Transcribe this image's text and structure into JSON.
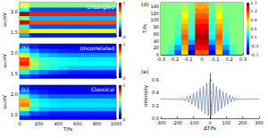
{
  "chart_data": [
    {
      "type": "heatmap",
      "panel_label": "(a)",
      "title": "Entangled",
      "y_label": "ωₛ/eV",
      "tick_labels": "y",
      "x": [
        50,
        150,
        250,
        350,
        450,
        550,
        650,
        750,
        850,
        950
      ],
      "y": [
        1.45,
        1.55,
        1.65,
        1.75,
        1.85,
        1.95,
        2.05,
        2.15
      ],
      "cells": [
        [
          0.3,
          0.15,
          0.15,
          0.15,
          0.15,
          0.15,
          0.15,
          0.15,
          0.15,
          0.15
        ],
        [
          0.7,
          0.6,
          0.6,
          0.6,
          0.6,
          0.6,
          0.6,
          0.6,
          0.6,
          0.6
        ],
        [
          0.4,
          0.2,
          0.2,
          0.2,
          0.2,
          0.2,
          0.2,
          0.2,
          0.2,
          0.2
        ],
        [
          0.9,
          0.8,
          0.8,
          0.8,
          0.8,
          0.8,
          0.8,
          0.8,
          0.8,
          0.8
        ],
        [
          0.5,
          0.3,
          0.3,
          0.3,
          0.3,
          0.3,
          0.3,
          0.3,
          0.3,
          0.3
        ],
        [
          0.95,
          0.85,
          0.85,
          0.85,
          0.85,
          0.85,
          0.85,
          0.85,
          0.85,
          0.85
        ],
        [
          0.4,
          0.2,
          0.2,
          0.2,
          0.2,
          0.2,
          0.2,
          0.2,
          0.2,
          0.2
        ],
        [
          0.6,
          0.5,
          0.5,
          0.5,
          0.5,
          0.5,
          0.5,
          0.5,
          0.5,
          0.5
        ]
      ],
      "colorbar": {
        "range": [
          0,
          1
        ],
        "ticks": [
          0,
          1
        ]
      },
      "xlim": [
        0,
        1000
      ],
      "xticks": [
        0,
        200,
        400,
        600,
        800,
        1000
      ],
      "ylim": [
        1.4,
        2.2
      ],
      "yticks": [
        1.5,
        {
          "value": 2,
          "label": "2.0"
        }
      ]
    },
    {
      "type": "heatmap",
      "panel_label": "(b)",
      "title": "Uncorrelated",
      "y_label": "ωₛ/eV",
      "tick_labels": "y",
      "x": [
        50,
        150,
        250,
        350,
        450,
        550,
        650,
        750,
        850,
        950
      ],
      "y": [
        1.45,
        1.55,
        1.65,
        1.75,
        1.85,
        1.95,
        2.05,
        2.15
      ],
      "cells": [
        [
          0.2,
          0.15,
          0.12,
          0.1,
          0.1,
          0.1,
          0.1,
          0.1,
          0.1,
          0.1
        ],
        [
          0.4,
          0.3,
          0.25,
          0.2,
          0.18,
          0.15,
          0.15,
          0.15,
          0.15,
          0.15
        ],
        [
          0.7,
          0.5,
          0.42,
          0.38,
          0.35,
          0.33,
          0.32,
          0.32,
          0.32,
          0.32
        ],
        [
          0.85,
          0.55,
          0.45,
          0.42,
          0.4,
          0.4,
          0.38,
          0.38,
          0.38,
          0.38
        ],
        [
          0.8,
          0.5,
          0.42,
          0.4,
          0.38,
          0.37,
          0.36,
          0.36,
          0.36,
          0.36
        ],
        [
          0.6,
          0.4,
          0.33,
          0.3,
          0.28,
          0.27,
          0.27,
          0.27,
          0.27,
          0.27
        ],
        [
          0.35,
          0.25,
          0.2,
          0.18,
          0.16,
          0.15,
          0.15,
          0.15,
          0.15,
          0.15
        ],
        [
          0.2,
          0.15,
          0.12,
          0.1,
          0.1,
          0.1,
          0.1,
          0.1,
          0.1,
          0.1
        ]
      ],
      "colorbar": {
        "range": [
          0,
          1
        ],
        "ticks": [
          0,
          1
        ]
      },
      "xlim": [
        0,
        1000
      ],
      "xticks": [
        0,
        200,
        400,
        600,
        800,
        1000
      ],
      "ylim": [
        1.4,
        2.2
      ],
      "yticks": [
        1.5,
        {
          "value": 2,
          "label": "2.0"
        }
      ]
    },
    {
      "type": "heatmap",
      "panel_label": "(c)",
      "title": "Classical",
      "y_label": "ωₛ/eV",
      "x_label": "T/fs",
      "x": [
        50,
        150,
        250,
        350,
        450,
        550,
        650,
        750,
        850,
        950
      ],
      "y": [
        1.45,
        1.55,
        1.65,
        1.75,
        1.85,
        1.95,
        2.05,
        2.15
      ],
      "cells": [
        [
          0.15,
          0.12,
          0.1,
          0.1,
          0.1,
          0.1,
          0.1,
          0.1,
          0.1,
          0.1
        ],
        [
          0.3,
          0.2,
          0.18,
          0.15,
          0.15,
          0.15,
          0.15,
          0.15,
          0.15,
          0.15
        ],
        [
          0.55,
          0.38,
          0.32,
          0.3,
          0.3,
          0.3,
          0.3,
          0.3,
          0.3,
          0.3
        ],
        [
          0.75,
          0.45,
          0.38,
          0.36,
          0.35,
          0.35,
          0.35,
          0.35,
          0.35,
          0.35
        ],
        [
          0.7,
          0.42,
          0.36,
          0.34,
          0.33,
          0.33,
          0.33,
          0.33,
          0.33,
          0.33
        ],
        [
          0.45,
          0.3,
          0.25,
          0.22,
          0.22,
          0.22,
          0.22,
          0.22,
          0.22,
          0.22
        ],
        [
          0.25,
          0.18,
          0.15,
          0.13,
          0.12,
          0.12,
          0.12,
          0.12,
          0.12,
          0.12
        ],
        [
          0.15,
          0.12,
          0.1,
          0.1,
          0.1,
          0.1,
          0.1,
          0.1,
          0.1,
          0.1
        ]
      ],
      "colorbar": {
        "range": [
          0,
          1
        ],
        "ticks": [
          0,
          1
        ]
      },
      "xlim": [
        0,
        1000
      ],
      "xticks": [
        0,
        200,
        400,
        600,
        800,
        1000
      ],
      "ylim": [
        1.4,
        2.2
      ],
      "yticks": [
        1.5,
        {
          "value": 2,
          "label": "2.0"
        }
      ]
    },
    {
      "type": "heatmap",
      "panel_label": "(d)",
      "y_label": "T/fs",
      "x": [
        -0.275,
        -0.225,
        -0.175,
        -0.125,
        -0.075,
        -0.025,
        0.025,
        0.075,
        0.125,
        0.175,
        0.225,
        0.275
      ],
      "y": [
        7.5,
        22.5,
        37.5,
        52.5,
        67.5,
        82.5,
        97.5,
        112.5,
        127.5,
        142.5
      ],
      "cells": [
        [
          0.5,
          0.3,
          -0.2,
          0.9,
          -0.5,
          1.2,
          1.2,
          -0.5,
          0.9,
          -0.2,
          0.3,
          0.5
        ],
        [
          0.5,
          0.4,
          0.0,
          1.0,
          -0.3,
          1.4,
          1.4,
          -0.3,
          1.0,
          0.0,
          0.4,
          0.5
        ],
        [
          0.5,
          0.5,
          0.2,
          1.1,
          0.0,
          1.5,
          1.5,
          0.0,
          1.1,
          0.2,
          0.5,
          0.5
        ],
        [
          0.5,
          0.5,
          0.3,
          1.2,
          0.2,
          1.6,
          1.6,
          0.2,
          1.2,
          0.3,
          0.5,
          0.5
        ],
        [
          0.5,
          0.5,
          0.4,
          1.1,
          0.3,
          1.5,
          1.5,
          0.3,
          1.1,
          0.4,
          0.5,
          0.5
        ],
        [
          0.5,
          0.5,
          0.4,
          1.0,
          0.3,
          1.4,
          1.4,
          0.3,
          1.0,
          0.4,
          0.5,
          0.5
        ],
        [
          0.5,
          0.5,
          0.45,
          0.9,
          0.35,
          1.3,
          1.3,
          0.35,
          0.9,
          0.45,
          0.5,
          0.5
        ],
        [
          0.5,
          0.5,
          0.45,
          0.8,
          0.4,
          1.2,
          1.2,
          0.4,
          0.8,
          0.45,
          0.5,
          0.5
        ],
        [
          0.5,
          0.5,
          0.5,
          0.7,
          0.45,
          1.1,
          1.1,
          0.45,
          0.7,
          0.5,
          0.5,
          0.5
        ],
        [
          0.5,
          0.5,
          0.5,
          0.6,
          0.45,
          1.0,
          1.0,
          0.45,
          0.6,
          0.5,
          0.5,
          0.5
        ]
      ],
      "colorbar": {
        "range": [
          -0.7,
          1.7
        ],
        "ticks": [
          -0.7,
          -0.3,
          0.1,
          0.5,
          0.9,
          1.3,
          1.7
        ]
      },
      "xlim": [
        -0.3,
        0.3
      ],
      "xticks": [
        -0.3,
        -0.2,
        -0.1,
        0,
        0.1,
        0.2,
        0.3
      ],
      "ylim": [
        0,
        150
      ],
      "yticks": [
        0,
        20,
        40,
        60,
        80,
        100,
        120,
        140
      ]
    },
    {
      "type": "line",
      "panel_label": "(e)",
      "x_label": "ΔT/fs",
      "y_label": "Intensity",
      "color": "#7286ad",
      "grid": false,
      "x": [
        -300,
        -290,
        -280,
        -270,
        -260,
        -250,
        -240,
        -230,
        -220,
        -210,
        -200,
        -190,
        -180,
        -170,
        -160,
        -150,
        -140,
        -130,
        -120,
        -110,
        -100,
        -90,
        -80,
        -70,
        -60,
        -50,
        -40,
        -30,
        -20,
        -10,
        0,
        10,
        20,
        30,
        40,
        50,
        60,
        70,
        80,
        90,
        100,
        110,
        120,
        130,
        140,
        150,
        160,
        170,
        180,
        190,
        200,
        210,
        220,
        230,
        240,
        250,
        260,
        270,
        280,
        290,
        300
      ],
      "values": [
        0.3,
        0.3,
        0.3,
        0.3,
        0.3,
        0.3,
        0.3,
        0.3,
        0.3,
        0.3,
        0.3,
        0.29,
        0.31,
        0.28,
        0.32,
        0.27,
        0.34,
        0.25,
        0.36,
        0.22,
        0.39,
        0.19,
        0.42,
        0.15,
        0.46,
        0.11,
        0.5,
        0.07,
        0.55,
        0.04,
        0.58,
        0.04,
        0.55,
        0.07,
        0.5,
        0.11,
        0.46,
        0.15,
        0.42,
        0.19,
        0.39,
        0.22,
        0.36,
        0.25,
        0.34,
        0.27,
        0.32,
        0.28,
        0.31,
        0.29,
        0.3,
        0.3,
        0.3,
        0.3,
        0.3,
        0.3,
        0.3,
        0.3,
        0.3,
        0.3,
        0.3
      ],
      "xlim": [
        -300,
        300
      ],
      "xticks": [
        -300,
        -200,
        -100,
        0,
        100,
        200,
        300
      ],
      "ylim": [
        0,
        0.7
      ],
      "yticks": [
        {
          "value": 0,
          "label": "0.0"
        },
        0.2,
        0.4,
        0.6
      ]
    }
  ]
}
